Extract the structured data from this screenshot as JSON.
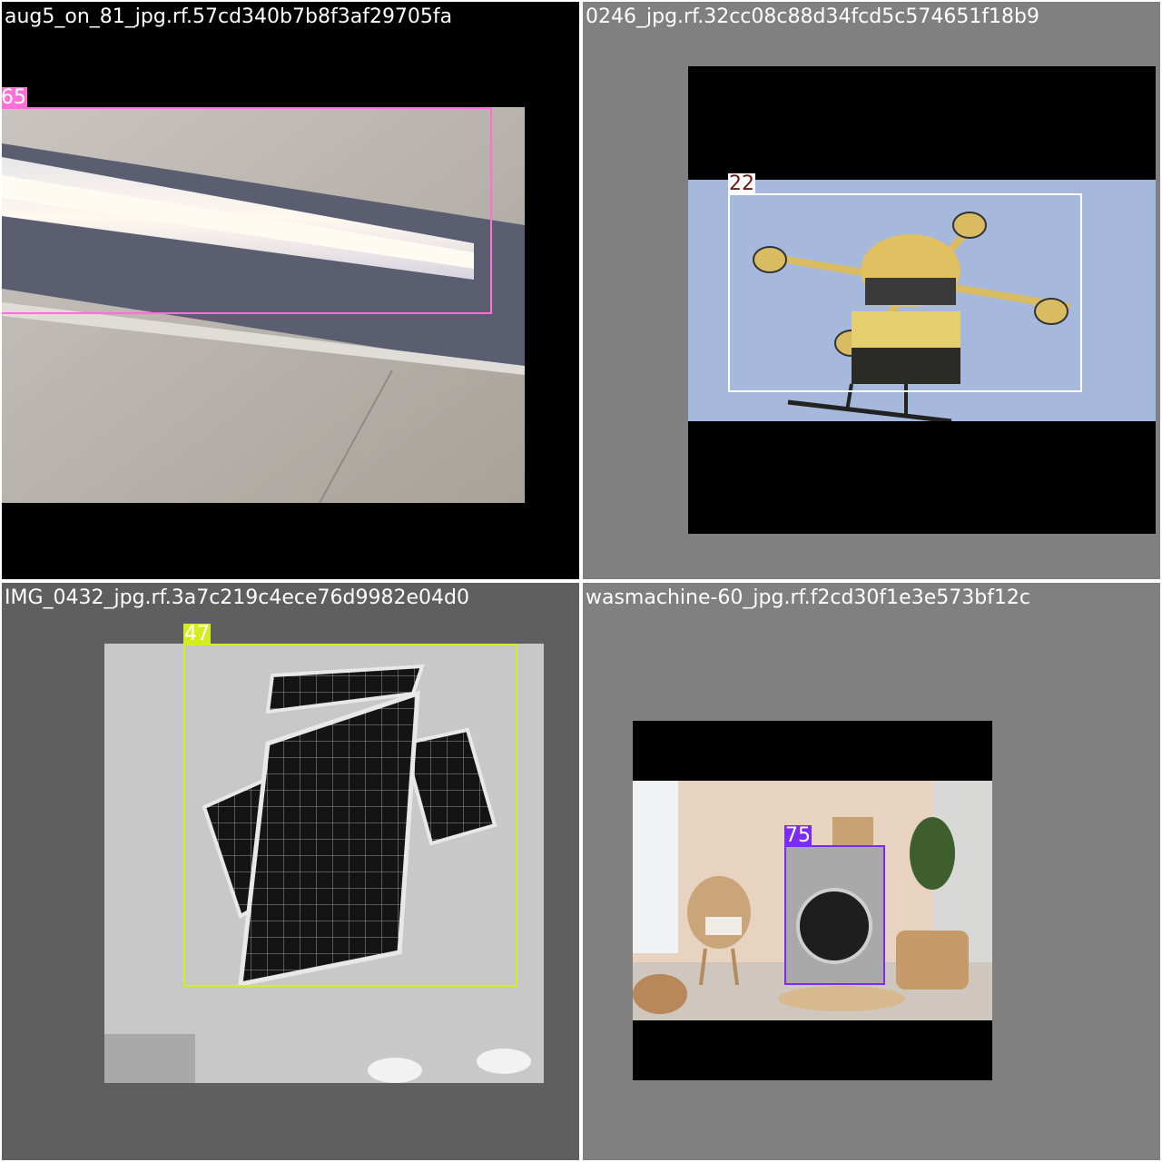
{
  "tiles": [
    {
      "filename": "aug5_on_81_jpg.rf.57cd340b7b8f3af29705fa",
      "label": "65",
      "box_color": "#ff6fd6",
      "label_text_color": "#ffffff"
    },
    {
      "filename": "0246_jpg.rf.32cc08c88d34fcd5c574651f18b9",
      "label": "22",
      "box_color": "#ffffff",
      "label_text_color": "#6a1a12"
    },
    {
      "filename": "IMG_0432_jpg.rf.3a7c219c4ece76d9982e04d0",
      "label": "47",
      "box_color": "#d4ec22",
      "label_text_color": "#ffffff"
    },
    {
      "filename": "wasmachine-60_jpg.rf.f2cd30f1e3e573bf12c",
      "label": "75",
      "box_color": "#7b2cf0",
      "label_text_color": "#ffffff"
    }
  ]
}
